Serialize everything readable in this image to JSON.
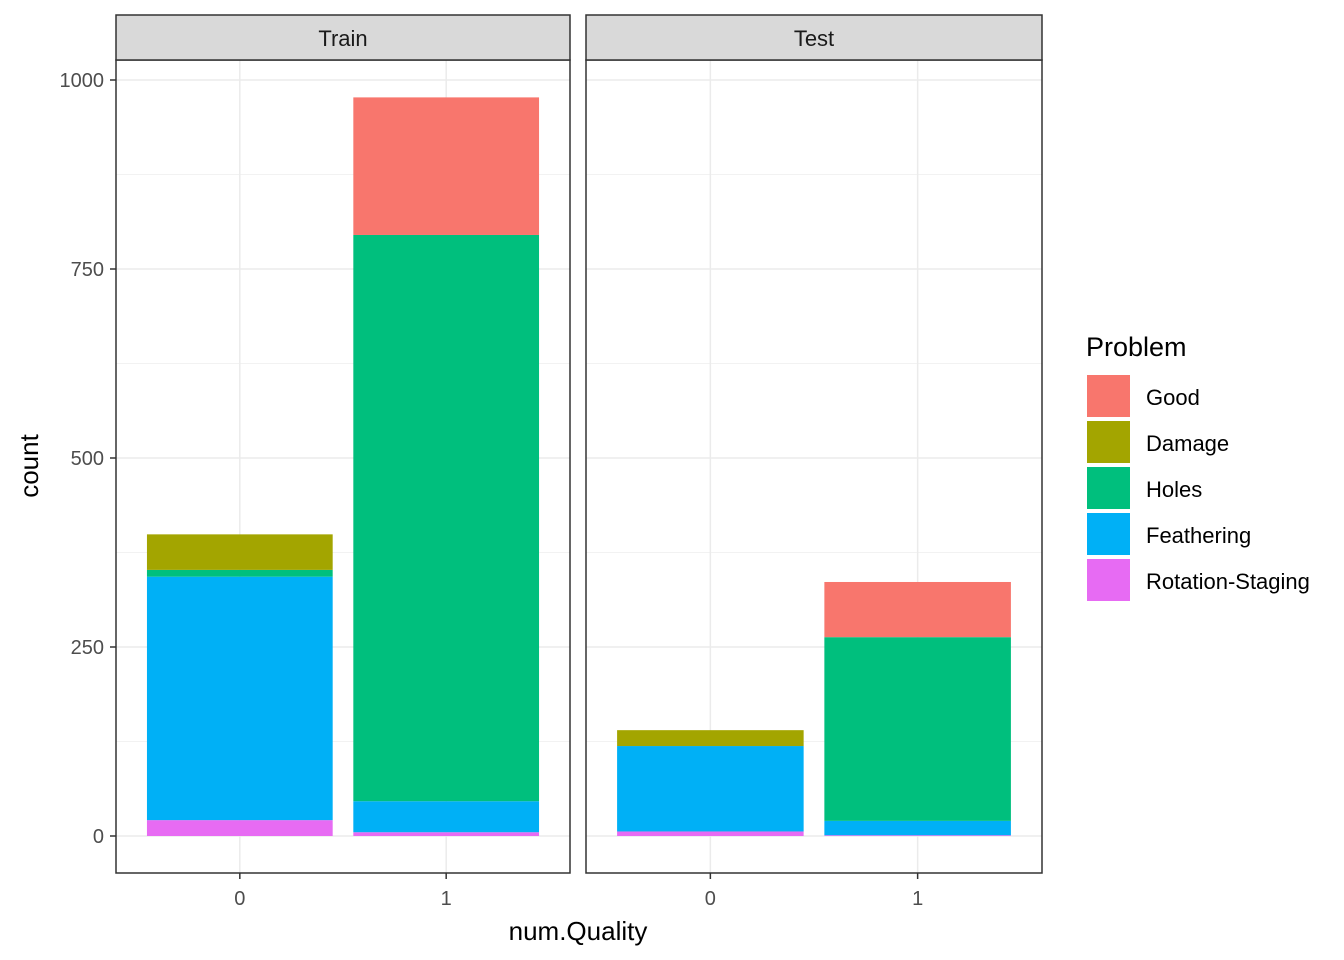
{
  "chart_data": {
    "type": "bar",
    "stacked": true,
    "facets": [
      "Train",
      "Test"
    ],
    "categories": [
      "0",
      "1"
    ],
    "xlabel": "num.Quality",
    "ylabel": "count",
    "ylim": [
      -50,
      1075
    ],
    "yticks": [
      0,
      250,
      500,
      750,
      1000
    ],
    "grid": true,
    "legend": {
      "title": "Problem",
      "placement": "right",
      "entries": [
        "Good",
        "Damage",
        "Holes",
        "Feathering",
        "Rotation-Staging"
      ]
    },
    "colors": {
      "Good": "#F8766D",
      "Damage": "#A3A500",
      "Holes": "#00BF7D",
      "Feathering": "#00B0F6",
      "Rotation-Staging": "#E76BF3"
    },
    "stack_order_bottom_to_top": [
      "Rotation-Staging",
      "Feathering",
      "Holes",
      "Damage",
      "Good"
    ],
    "series": [
      {
        "name": "Good",
        "values": {
          "Train": [
            0,
            182
          ],
          "Test": [
            0,
            73
          ]
        }
      },
      {
        "name": "Damage",
        "values": {
          "Train": [
            47,
            0
          ],
          "Test": [
            21,
            0
          ]
        }
      },
      {
        "name": "Holes",
        "values": {
          "Train": [
            9,
            749
          ],
          "Test": [
            0,
            243
          ]
        }
      },
      {
        "name": "Feathering",
        "values": {
          "Train": [
            322,
            41
          ],
          "Test": [
            113,
            19
          ]
        }
      },
      {
        "name": "Rotation-Staging",
        "values": {
          "Train": [
            21,
            5
          ],
          "Test": [
            6,
            1
          ]
        }
      }
    ]
  }
}
